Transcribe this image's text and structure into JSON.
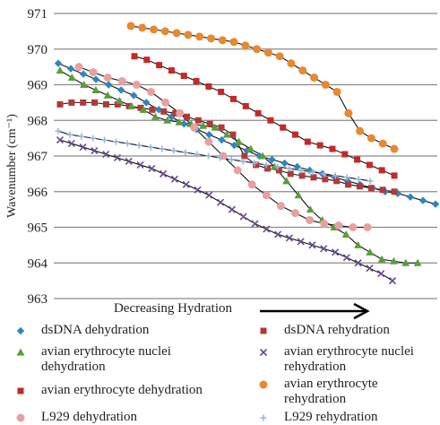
{
  "chart_data": {
    "type": "scatter",
    "title": "",
    "xlabel": "Decreasing Hydration",
    "ylabel": "Wavenumber (cm⁻¹)",
    "x_range": [
      0,
      30
    ],
    "ylim": [
      963,
      971
    ],
    "yticks": [
      963,
      964,
      965,
      966,
      967,
      968,
      969,
      970,
      971
    ],
    "grid": "horizontal",
    "legend_position": "bottom",
    "series": [
      {
        "name": "dsDNA dehydration",
        "marker": "diamond",
        "color": "#2e86c1",
        "x": [
          0,
          1,
          2,
          3,
          4,
          5,
          6,
          7,
          8,
          9,
          10,
          11,
          12,
          13,
          14,
          15,
          16,
          17,
          18,
          19,
          20,
          21,
          22,
          23,
          24,
          25,
          26,
          27,
          28,
          29,
          30
        ],
        "y": [
          969.6,
          969.45,
          969.3,
          969.15,
          969.0,
          968.85,
          968.7,
          968.5,
          968.3,
          968.1,
          967.9,
          967.75,
          967.6,
          967.45,
          967.3,
          967.15,
          967.0,
          966.9,
          966.8,
          966.7,
          966.6,
          966.5,
          966.4,
          966.3,
          966.2,
          966.1,
          966.0,
          965.95,
          965.85,
          965.75,
          965.65
        ]
      },
      {
        "name": "dsDNA rehydration",
        "marker": "square",
        "color": "#b03a3a",
        "x": [
          0,
          1,
          2,
          3,
          4,
          5,
          6,
          7,
          8,
          9,
          10,
          11,
          12,
          13,
          14,
          15,
          16,
          17,
          18,
          19,
          20,
          21,
          22,
          23,
          24,
          25,
          26,
          27,
          28,
          29
        ],
        "y": [
          968.45,
          968.5,
          968.5,
          968.5,
          968.45,
          968.45,
          968.4,
          968.35,
          968.3,
          968.25,
          968.2,
          968.1,
          968.0,
          967.9,
          967.8,
          967.6,
          967.0,
          966.75,
          966.65,
          966.6,
          966.5,
          966.45,
          966.4,
          966.35,
          966.3,
          966.2,
          966.15,
          966.1,
          966.05,
          966.0
        ]
      },
      {
        "name": "avian erythrocyte nuclei dehydration",
        "marker": "triangle",
        "color": "#5a9e3a",
        "x": [
          0,
          1,
          2,
          3,
          4,
          5,
          6,
          7,
          8,
          9,
          10,
          11,
          12,
          13,
          14,
          15,
          16,
          17,
          18,
          19,
          20,
          21,
          22,
          23,
          24,
          25,
          26,
          27,
          28,
          29,
          30
        ],
        "y": [
          969.4,
          969.2,
          969.0,
          968.85,
          968.7,
          968.55,
          968.4,
          968.3,
          968.1,
          968.0,
          967.95,
          967.9,
          967.85,
          967.8,
          967.6,
          967.4,
          967.2,
          967.0,
          966.7,
          966.3,
          965.9,
          965.5,
          965.2,
          965.0,
          964.8,
          964.5,
          964.3,
          964.1,
          964.05,
          964.0,
          964.0
        ]
      },
      {
        "name": "avian erythrocyte nuclei rehydration",
        "marker": "x",
        "color": "#6a4a8c",
        "x": [
          0,
          1,
          2,
          3,
          4,
          5,
          6,
          7,
          8,
          9,
          10,
          11,
          12,
          13,
          14,
          15,
          16,
          17,
          18,
          19,
          20,
          21,
          22,
          23,
          24,
          25,
          26,
          27,
          28,
          29
        ],
        "y": [
          967.45,
          967.35,
          967.25,
          967.15,
          967.05,
          966.95,
          966.85,
          966.75,
          966.65,
          966.5,
          966.35,
          966.2,
          966.05,
          965.9,
          965.7,
          965.5,
          965.3,
          965.1,
          964.95,
          964.8,
          964.7,
          964.6,
          964.5,
          964.4,
          964.3,
          964.15,
          964.0,
          963.85,
          963.7,
          963.5
        ]
      },
      {
        "name": "avian erythrocyte dehydration",
        "marker": "square",
        "color": "#c62828",
        "x": [
          0,
          1,
          2,
          3,
          4,
          5,
          6,
          7,
          8,
          9,
          10,
          11,
          12,
          13,
          14,
          15,
          16,
          17,
          18,
          19,
          20,
          21
        ],
        "y": [
          969.8,
          969.7,
          969.55,
          969.4,
          969.25,
          969.1,
          968.95,
          968.8,
          968.6,
          968.4,
          968.2,
          968.0,
          967.8,
          967.6,
          967.4,
          967.3,
          967.2,
          967.05,
          966.9,
          966.75,
          966.6,
          966.45
        ]
      },
      {
        "name": "avian erythrocyte rehydration",
        "marker": "circle",
        "color": "#e8892f",
        "x": [
          0,
          1,
          2,
          3,
          4,
          5,
          6,
          7,
          8,
          9,
          10,
          11,
          12,
          13,
          14,
          15,
          16,
          17,
          18,
          19,
          20,
          21,
          22,
          23
        ],
        "y": [
          970.65,
          970.6,
          970.55,
          970.5,
          970.45,
          970.4,
          970.35,
          970.3,
          970.25,
          970.2,
          970.1,
          970.0,
          969.9,
          969.8,
          969.6,
          969.4,
          969.2,
          969.0,
          968.8,
          968.2,
          967.7,
          967.5,
          967.35,
          967.2
        ]
      },
      {
        "name": "L929 dehydration",
        "marker": "circle",
        "color": "#e8a0a0",
        "x": [
          0,
          1,
          2,
          3,
          4,
          5,
          6,
          7,
          8,
          9,
          10,
          11,
          12,
          13,
          14,
          15,
          16,
          17,
          18,
          19,
          20
        ],
        "y": [
          969.5,
          969.35,
          969.2,
          969.1,
          969.0,
          968.8,
          968.5,
          968.2,
          967.8,
          967.4,
          967.0,
          966.6,
          966.2,
          965.9,
          965.6,
          965.4,
          965.2,
          965.1,
          965.05,
          965.0,
          965.0
        ]
      },
      {
        "name": "L929 rehydration",
        "marker": "plus",
        "color": "#9ab7d8",
        "x": [
          0,
          1,
          2,
          3,
          4,
          5,
          6,
          7,
          8,
          9,
          10,
          11,
          12,
          13,
          14,
          15,
          16,
          17,
          18,
          19,
          20,
          21,
          22,
          23,
          24,
          25,
          26,
          27
        ],
        "y": [
          967.7,
          967.6,
          967.55,
          967.5,
          967.45,
          967.4,
          967.35,
          967.3,
          967.25,
          967.2,
          967.15,
          967.1,
          967.05,
          967.0,
          966.95,
          966.9,
          966.85,
          966.8,
          966.75,
          966.7,
          966.65,
          966.6,
          966.55,
          966.5,
          966.45,
          966.4,
          966.35,
          966.3
        ]
      }
    ]
  }
}
